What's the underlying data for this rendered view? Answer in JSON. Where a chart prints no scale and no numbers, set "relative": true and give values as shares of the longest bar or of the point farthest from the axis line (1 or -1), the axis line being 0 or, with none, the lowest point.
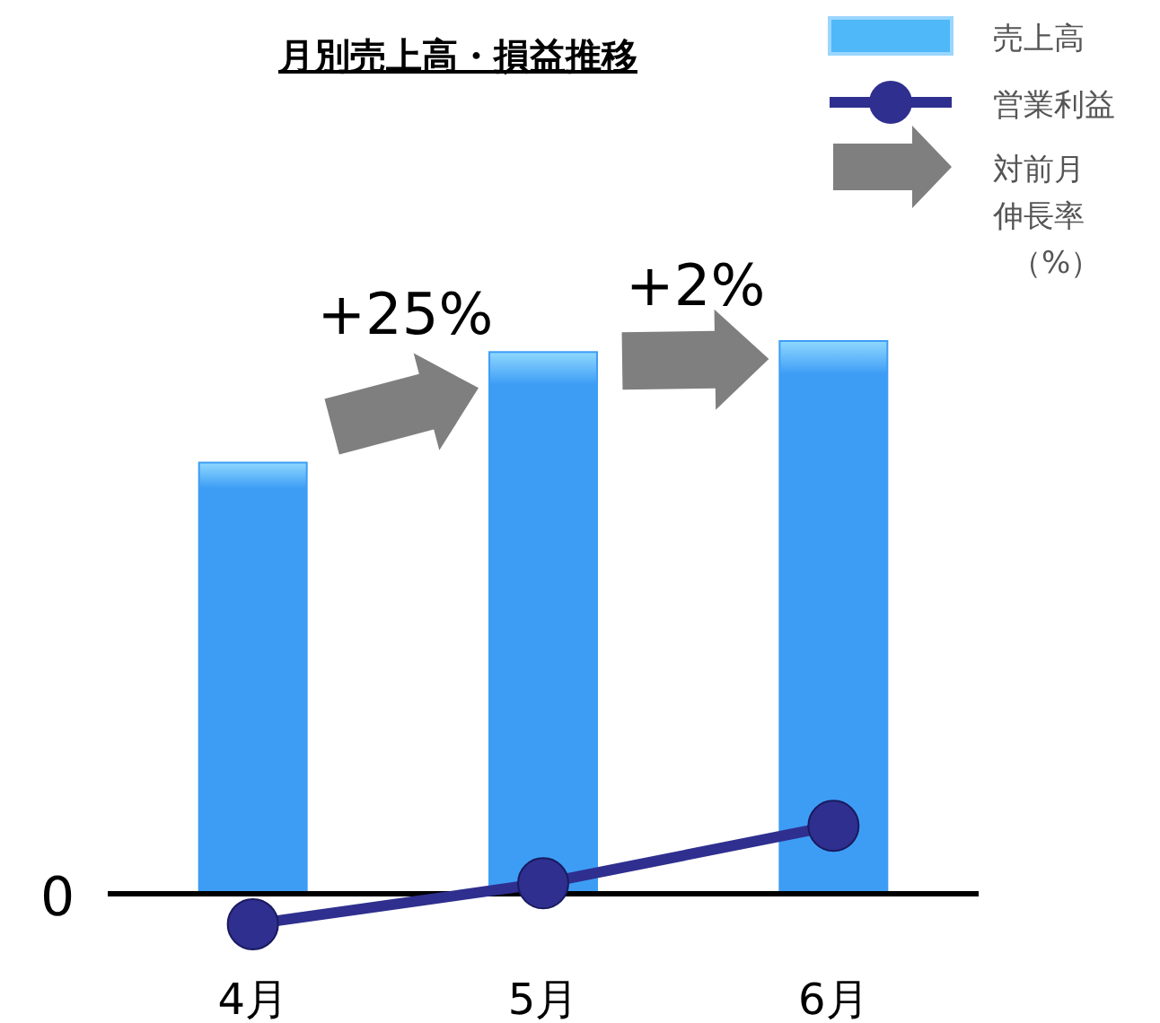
{
  "chart_data": {
    "type": "bar",
    "title": "月別売上高・損益推移",
    "relative": true,
    "categories": [
      "4月",
      "5月",
      "6月"
    ],
    "series": [
      {
        "name": "売上高",
        "color": "#3d9df5",
        "values": [
          0.78,
          0.98,
          1
        ]
      },
      {
        "name": "営業利益",
        "type": "line",
        "color": "#2f2f8f",
        "values": [
          -0.055,
          0.019,
          0.123
        ]
      }
    ],
    "marker": "circle",
    "legend": "top right",
    "annotations": [
      "+25%",
      "+2%",
      "対前月",
      "伸長率",
      "（%）",
      "0"
    ]
  }
}
